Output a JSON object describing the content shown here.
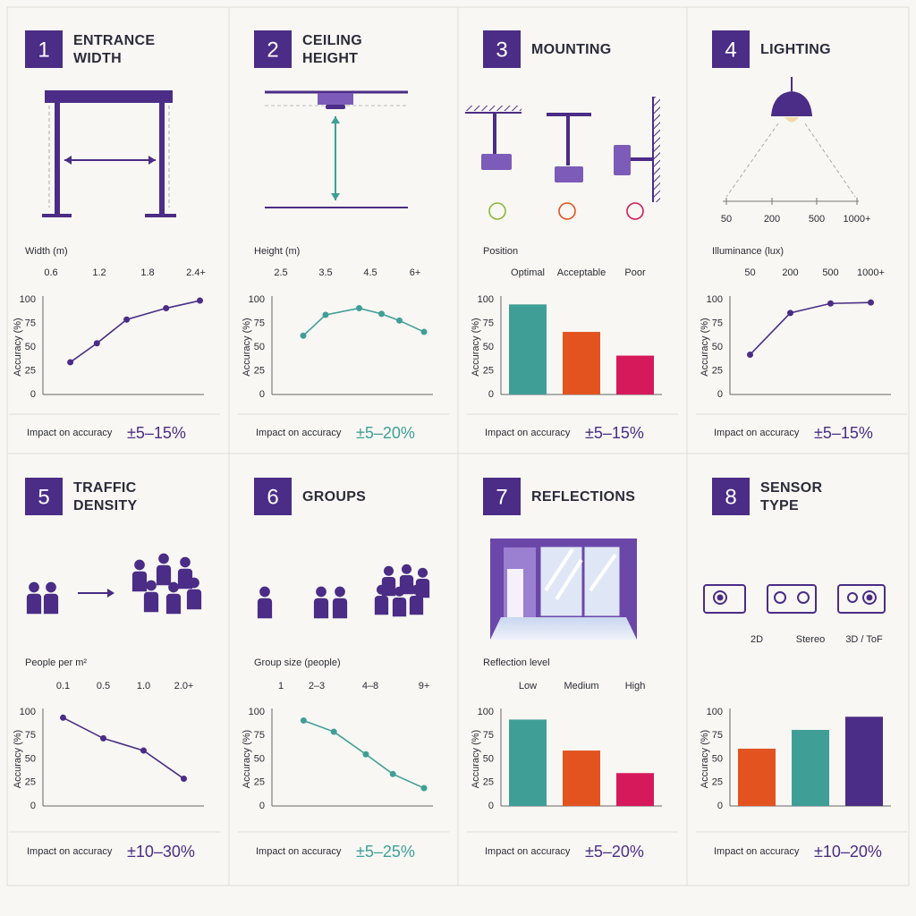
{
  "chart_data": [
    {
      "type": "line",
      "number": "1",
      "title": "ENTRANCE WIDTH",
      "x_label": "Width (m)",
      "y_label": "Accuracy (%)",
      "x": [
        0.84,
        1.17,
        1.54,
        2.03,
        2.45
      ],
      "values": [
        34,
        54,
        79,
        91,
        99
      ],
      "xlim": [
        0.5,
        2.5
      ],
      "xticks": [
        0.6,
        1.2,
        1.8,
        {
          "value": 2.4,
          "label": "2.4+"
        }
      ],
      "ylim": [
        0,
        100
      ],
      "yticks": [
        0,
        25,
        50,
        75,
        100
      ],
      "color": "#4b2c86",
      "impact_label": "Impact on accuracy",
      "impact": "±5–15%",
      "impact_color": "#4b2c86"
    },
    {
      "type": "line",
      "number": "2",
      "title": "CEILING HEIGHT",
      "x_label": "Height (m)",
      "y_label": "Accuracy (%)",
      "x": [
        3.0,
        3.5,
        4.25,
        4.75,
        5.15,
        5.7
      ],
      "values": [
        62,
        84,
        91,
        85,
        78,
        66
      ],
      "xlim": [
        2.3,
        5.9
      ],
      "xticks": [
        2.5,
        3.5,
        4.5,
        {
          "value": 5.5,
          "label": "6+"
        }
      ],
      "ylim": [
        0,
        100
      ],
      "yticks": [
        0,
        25,
        50,
        75,
        100
      ],
      "color": "#3f9f97",
      "impact_label": "Impact on accuracy",
      "impact": "±5–20%",
      "impact_color": "#3f9f97"
    },
    {
      "type": "bar",
      "number": "3",
      "title": "MOUNTING",
      "x_label": "Position",
      "y_label": "Accuracy (%)",
      "categories": [
        "Optimal",
        "Acceptable",
        "Poor"
      ],
      "values": [
        95,
        66,
        41
      ],
      "colors": [
        "#3f9f97",
        "#e2531f",
        "#d6195a"
      ],
      "ylim": [
        0,
        100
      ],
      "yticks": [
        0,
        25,
        50,
        75,
        100
      ],
      "impact_label": "Impact on accuracy",
      "impact": "±5–15%",
      "impact_color": "#4b2c86"
    },
    {
      "type": "line",
      "number": "4",
      "title": "LIGHTING",
      "x_label": "Illuminance (lux)",
      "y_label": "Accuracy (%)",
      "categories": [
        "50",
        "200",
        "500",
        "1000+"
      ],
      "values": [
        42,
        86,
        96,
        97
      ],
      "ylim": [
        0,
        100
      ],
      "yticks": [
        0,
        25,
        50,
        75,
        100
      ],
      "color": "#4b2c86",
      "impact_label": "Impact on accuracy",
      "impact": "±5–15%",
      "impact_color": "#4b2c86"
    },
    {
      "type": "line",
      "number": "5",
      "title": "TRAFFIC DENSITY",
      "x_label": "People per m²",
      "y_label": "Accuracy (%)",
      "categories": [
        "0.1",
        "0.5",
        "1.0",
        "2.0+"
      ],
      "values": [
        94,
        72,
        59,
        29
      ],
      "ylim": [
        0,
        100
      ],
      "yticks": [
        0,
        25,
        50,
        75,
        100
      ],
      "color": "#4b2c86",
      "impact_label": "Impact on accuracy",
      "impact": "±10–30%",
      "impact_color": "#4b2c86"
    },
    {
      "type": "line",
      "number": "6",
      "title": "GROUPS",
      "x_label": "Group size (people)",
      "y_label": "Accuracy (%)",
      "x": [
        2.27,
        3.96,
        5.75,
        7.26,
        9.0
      ],
      "values": [
        91,
        79,
        55,
        34,
        19
      ],
      "xlim": [
        0.5,
        9.5
      ],
      "xticks": [
        1,
        {
          "value": 3,
          "label": "2–3"
        },
        {
          "value": 6,
          "label": "4–8"
        },
        {
          "value": 9,
          "label": "9+"
        }
      ],
      "ylim": [
        0,
        100
      ],
      "yticks": [
        0,
        25,
        50,
        75,
        100
      ],
      "color": "#3f9f97",
      "impact_label": "Impact on accuracy",
      "impact": "±5–25%",
      "impact_color": "#3f9f97"
    },
    {
      "type": "bar",
      "number": "7",
      "title": "REFLECTIONS",
      "x_label": "Reflection level",
      "y_label": "Accuracy (%)",
      "categories": [
        "Low",
        "Medium",
        "High"
      ],
      "values": [
        92,
        59,
        35
      ],
      "colors": [
        "#3f9f97",
        "#e2531f",
        "#d6195a"
      ],
      "ylim": [
        0,
        100
      ],
      "yticks": [
        0,
        25,
        50,
        75,
        100
      ],
      "impact_label": "Impact on accuracy",
      "impact": "±5–20%",
      "impact_color": "#4b2c86"
    },
    {
      "type": "bar",
      "number": "8",
      "title": "SENSOR TYPE",
      "y_label": "Accuracy (%)",
      "categories": [
        "2D",
        "Stereo",
        "3D / ToF"
      ],
      "values": [
        61,
        81,
        95
      ],
      "colors": [
        "#e2531f",
        "#3f9f97",
        "#4b2c86"
      ],
      "ylim": [
        0,
        100
      ],
      "yticks": [
        0,
        25,
        50,
        75,
        100
      ],
      "impact_label": "Impact on accuracy",
      "impact": "±10–20%",
      "impact_color": "#4b2c86"
    }
  ]
}
